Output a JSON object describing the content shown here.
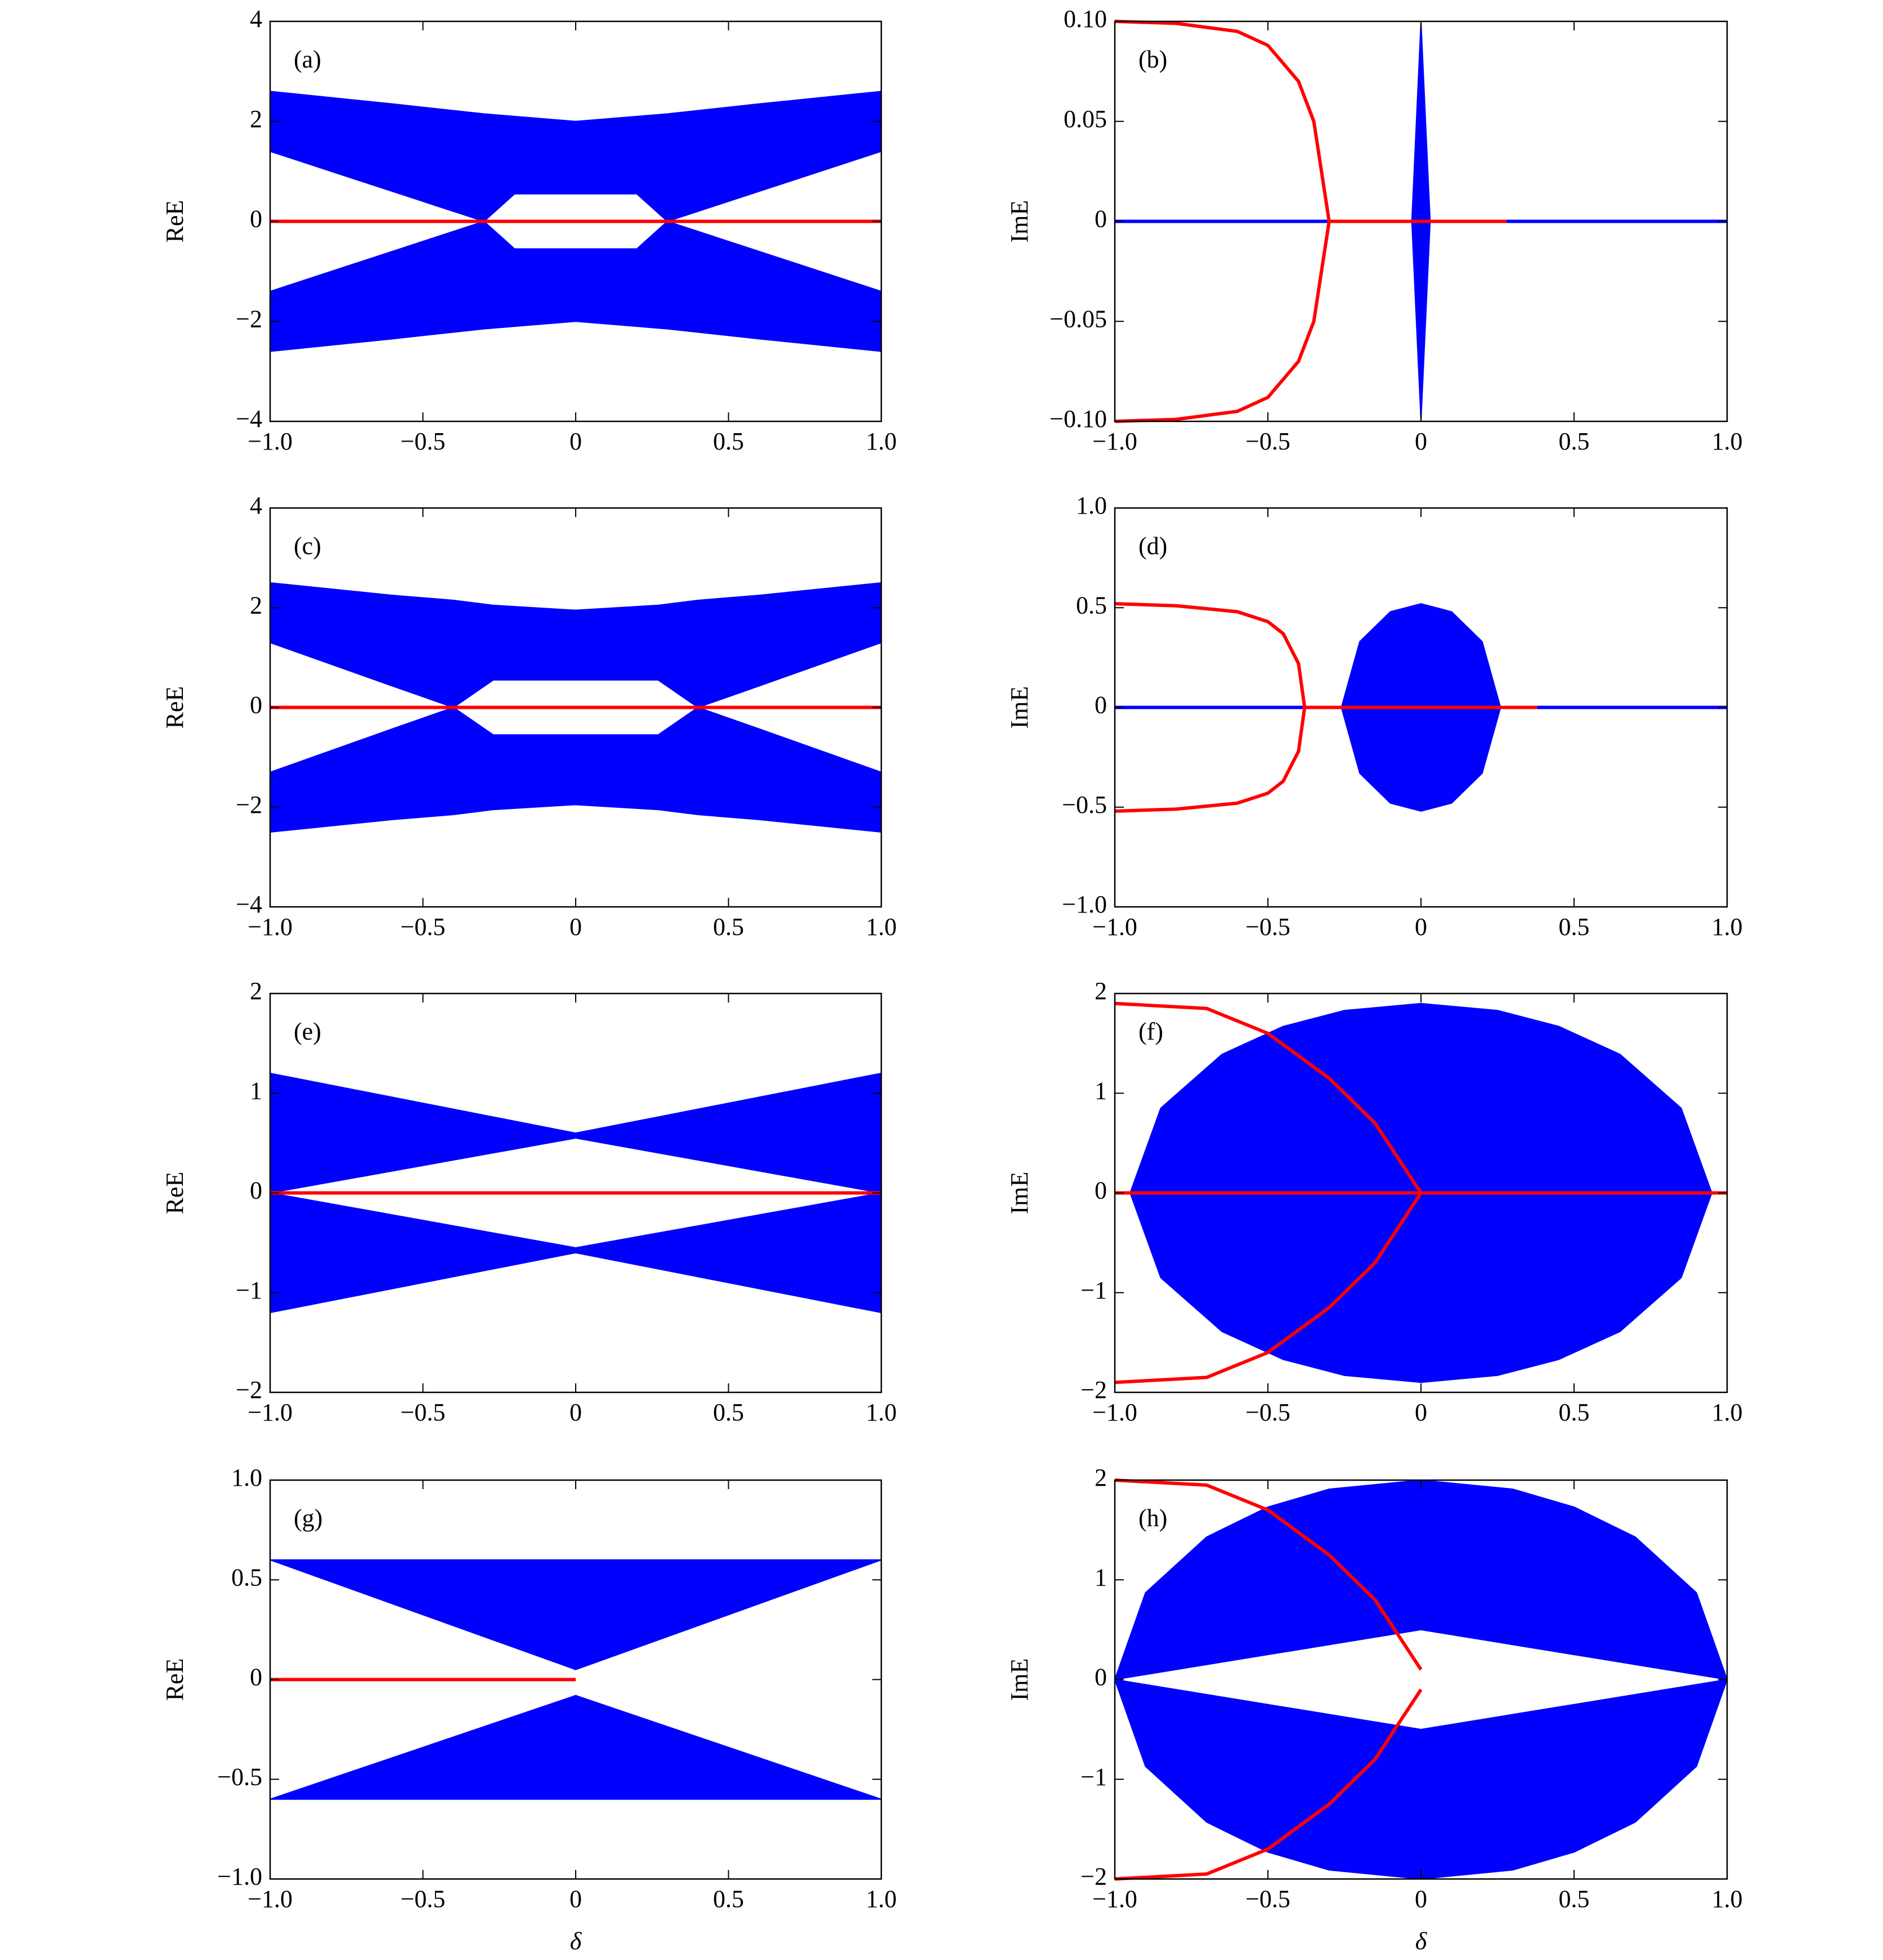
{
  "chart_data": [
    {
      "type": "line",
      "label": "(a)",
      "ylabel": "ReE",
      "xlim": [
        -1,
        1
      ],
      "ylim": [
        -4,
        4
      ],
      "xticks": [
        {
          "value": -1,
          "label": "−1.0"
        },
        {
          "value": -0.5,
          "label": "−0.5"
        },
        0,
        0.5,
        {
          "value": 1,
          "label": "1.0"
        }
      ],
      "yticks": [
        {
          "value": -4,
          "label": "−4"
        },
        {
          "value": -2,
          "label": "−2"
        },
        0,
        2,
        4
      ],
      "series": [
        {
          "color": "#0000ff",
          "x": [
            -1,
            -0.6,
            -0.3,
            -0.2,
            0,
            0.2,
            0.3,
            0.6,
            1
          ],
          "values": [
            2.6,
            2.35,
            2.15,
            2.1,
            2.0,
            2.1,
            2.15,
            2.35,
            2.6
          ],
          "values_low": [
            1.4,
            0.6,
            0,
            0.55,
            0.55,
            0.55,
            0,
            0.6,
            1.4
          ]
        },
        {
          "color": "#0000ff",
          "x": [
            -1,
            -0.6,
            -0.3,
            -0.2,
            0,
            0.2,
            0.3,
            0.6,
            1
          ],
          "values": [
            -1.4,
            -0.6,
            0,
            -0.55,
            -0.55,
            -0.55,
            0,
            -0.6,
            -1.4
          ],
          "values_low": [
            -2.6,
            -2.35,
            -2.15,
            -2.1,
            -2.0,
            -2.1,
            -2.15,
            -2.35,
            -2.6
          ]
        },
        {
          "color": "#ff0000",
          "x": [
            -1,
            1
          ],
          "values": [
            0,
            0
          ]
        }
      ]
    },
    {
      "type": "line",
      "label": "(b)",
      "ylabel": "ImE",
      "xlim": [
        -1,
        1
      ],
      "ylim": [
        -0.1,
        0.1
      ],
      "xticks": [
        {
          "value": -1,
          "label": "−1.0"
        },
        {
          "value": -0.5,
          "label": "−0.5"
        },
        0,
        0.5,
        {
          "value": 1,
          "label": "1.0"
        }
      ],
      "yticks": [
        {
          "value": -0.1,
          "label": "−0.10"
        },
        {
          "value": -0.05,
          "label": "−0.05"
        },
        0,
        0.05,
        {
          "value": 0.1,
          "label": "0.10"
        }
      ],
      "series": [
        {
          "color": "#0000ff",
          "x": [
            -1,
            1
          ],
          "values": [
            0,
            0
          ]
        },
        {
          "color": "#0000ff",
          "x": [
            -0.03,
            0,
            0.03
          ],
          "values": [
            0,
            0.1,
            0
          ],
          "values_low": [
            0,
            -0.1,
            0
          ]
        },
        {
          "color": "#ff0000",
          "x": [
            -1,
            -0.8,
            -0.6,
            -0.5,
            -0.4,
            -0.35,
            -0.3
          ],
          "values": [
            0.1,
            0.099,
            0.095,
            0.088,
            0.07,
            0.05,
            0
          ]
        },
        {
          "color": "#ff0000",
          "x": [
            -1,
            -0.8,
            -0.6,
            -0.5,
            -0.4,
            -0.35,
            -0.3
          ],
          "values": [
            -0.1,
            -0.099,
            -0.095,
            -0.088,
            -0.07,
            -0.05,
            0
          ]
        },
        {
          "color": "#ff0000",
          "x": [
            -0.3,
            0.28
          ],
          "values": [
            0,
            0
          ]
        }
      ]
    },
    {
      "type": "line",
      "label": "(c)",
      "ylabel": "ReE",
      "xlim": [
        -1,
        1
      ],
      "ylim": [
        -4,
        4
      ],
      "xticks": [
        {
          "value": -1,
          "label": "−1.0"
        },
        {
          "value": -0.5,
          "label": "−0.5"
        },
        0,
        0.5,
        {
          "value": 1,
          "label": "1.0"
        }
      ],
      "yticks": [
        {
          "value": -4,
          "label": "−4"
        },
        {
          "value": -2,
          "label": "−2"
        },
        0,
        2,
        4
      ],
      "series": [
        {
          "color": "#0000ff",
          "x": [
            -1,
            -0.6,
            -0.4,
            -0.27,
            0,
            0.27,
            0.4,
            0.6,
            1
          ],
          "values": [
            2.5,
            2.25,
            2.15,
            2.05,
            1.95,
            2.05,
            2.15,
            2.25,
            2.5
          ],
          "values_low": [
            1.3,
            0.43,
            0,
            0.55,
            0.55,
            0.55,
            0,
            0.43,
            1.3
          ]
        },
        {
          "color": "#0000ff",
          "x": [
            -1,
            -0.6,
            -0.4,
            -0.27,
            0,
            0.27,
            0.4,
            0.6,
            1
          ],
          "values": [
            -1.3,
            -0.43,
            0,
            -0.55,
            -0.55,
            -0.55,
            0,
            -0.43,
            -1.3
          ],
          "values_low": [
            -2.5,
            -2.25,
            -2.15,
            -2.05,
            -1.95,
            -2.05,
            -2.15,
            -2.25,
            -2.5
          ]
        },
        {
          "color": "#ff0000",
          "x": [
            -1,
            1
          ],
          "values": [
            0,
            0
          ]
        }
      ]
    },
    {
      "type": "line",
      "label": "(d)",
      "ylabel": "ImE",
      "xlim": [
        -1,
        1
      ],
      "ylim": [
        -1,
        1
      ],
      "xticks": [
        {
          "value": -1,
          "label": "−1.0"
        },
        {
          "value": -0.5,
          "label": "−0.5"
        },
        0,
        0.5,
        {
          "value": 1,
          "label": "1.0"
        }
      ],
      "yticks": [
        {
          "value": -1,
          "label": "−1.0"
        },
        {
          "value": -0.5,
          "label": "−0.5"
        },
        0,
        0.5,
        {
          "value": 1,
          "label": "1.0"
        }
      ],
      "series": [
        {
          "color": "#0000ff",
          "x": [
            -0.26,
            -0.2,
            -0.1,
            0,
            0.1,
            0.2,
            0.26
          ],
          "values": [
            0,
            0.33,
            0.48,
            0.52,
            0.48,
            0.33,
            0
          ],
          "values_low": [
            0,
            -0.33,
            -0.48,
            -0.52,
            -0.48,
            -0.33,
            0
          ]
        },
        {
          "color": "#0000ff",
          "x": [
            -1,
            1
          ],
          "values": [
            0,
            0
          ]
        },
        {
          "color": "#ff0000",
          "x": [
            -1,
            -0.8,
            -0.6,
            -0.5,
            -0.45,
            -0.4,
            -0.38
          ],
          "values": [
            0.52,
            0.51,
            0.48,
            0.43,
            0.37,
            0.22,
            0
          ]
        },
        {
          "color": "#ff0000",
          "x": [
            -1,
            -0.8,
            -0.6,
            -0.5,
            -0.45,
            -0.4,
            -0.38
          ],
          "values": [
            -0.52,
            -0.51,
            -0.48,
            -0.43,
            -0.37,
            -0.22,
            0
          ]
        },
        {
          "color": "#ff0000",
          "x": [
            -0.38,
            0.38
          ],
          "values": [
            0,
            0
          ]
        }
      ]
    },
    {
      "type": "line",
      "label": "(e)",
      "ylabel": "ReE",
      "xlim": [
        -1,
        1
      ],
      "ylim": [
        -2,
        2
      ],
      "xticks": [
        {
          "value": -1,
          "label": "−1.0"
        },
        {
          "value": -0.5,
          "label": "−0.5"
        },
        0,
        0.5,
        {
          "value": 1,
          "label": "1.0"
        }
      ],
      "yticks": [
        {
          "value": -2,
          "label": "−2"
        },
        {
          "value": -1,
          "label": "−1"
        },
        0,
        1,
        2
      ],
      "series": [
        {
          "color": "#0000ff",
          "x": [
            -1,
            0,
            1
          ],
          "values": [
            1.2,
            0.6,
            1.2
          ],
          "values_low": [
            0,
            0.55,
            0
          ]
        },
        {
          "color": "#0000ff",
          "x": [
            -1,
            0,
            1
          ],
          "values": [
            0,
            -0.55,
            0
          ],
          "values_low": [
            -1.2,
            -0.6,
            -1.2
          ]
        },
        {
          "color": "#ff0000",
          "x": [
            -1,
            1
          ],
          "values": [
            0,
            0
          ]
        }
      ]
    },
    {
      "type": "line",
      "label": "(f)",
      "ylabel": "ImE",
      "xlim": [
        -1,
        1
      ],
      "ylim": [
        -2,
        2
      ],
      "xticks": [
        {
          "value": -1,
          "label": "−1.0"
        },
        {
          "value": -0.5,
          "label": "−0.5"
        },
        0,
        0.5,
        {
          "value": 1,
          "label": "1.0"
        }
      ],
      "yticks": [
        {
          "value": -2,
          "label": "−2"
        },
        {
          "value": -1,
          "label": "−1"
        },
        0,
        1,
        2
      ],
      "series": [
        {
          "color": "#0000ff",
          "x": [
            -0.95,
            -0.85,
            -0.65,
            -0.45,
            -0.25,
            0,
            0.25,
            0.45,
            0.65,
            0.85,
            0.95
          ],
          "values": [
            0,
            0.85,
            1.39,
            1.67,
            1.83,
            1.9,
            1.83,
            1.67,
            1.39,
            0.85,
            0
          ],
          "values_low": [
            0,
            -0.85,
            -1.39,
            -1.67,
            -1.83,
            -1.9,
            -1.83,
            -1.67,
            -1.39,
            -0.85,
            0
          ]
        },
        {
          "color": "#ff0000",
          "x": [
            -1,
            -0.7,
            -0.5,
            -0.3,
            -0.15,
            0
          ],
          "values": [
            1.9,
            1.85,
            1.6,
            1.15,
            0.7,
            0
          ]
        },
        {
          "color": "#ff0000",
          "x": [
            -1,
            -0.7,
            -0.5,
            -0.3,
            -0.15,
            0
          ],
          "values": [
            -1.9,
            -1.85,
            -1.6,
            -1.15,
            -0.7,
            0
          ]
        },
        {
          "color": "#ff0000",
          "x": [
            -1,
            1
          ],
          "values": [
            0,
            0
          ]
        }
      ]
    },
    {
      "type": "line",
      "label": "(g)",
      "ylabel": "ReE",
      "xlabel": "δ",
      "xlim": [
        -1,
        1
      ],
      "ylim": [
        -1,
        1
      ],
      "xticks": [
        {
          "value": -1,
          "label": "−1.0"
        },
        {
          "value": -0.5,
          "label": "−0.5"
        },
        0,
        0.5,
        {
          "value": 1,
          "label": "1.0"
        }
      ],
      "yticks": [
        {
          "value": -1,
          "label": "−1.0"
        },
        {
          "value": -0.5,
          "label": "−0.5"
        },
        0,
        0.5,
        {
          "value": 1,
          "label": "1.0"
        }
      ],
      "series": [
        {
          "color": "#0000ff",
          "x": [
            -1,
            0,
            1
          ],
          "values": [
            0.6,
            0.6,
            0.6
          ],
          "values_low": [
            0.6,
            0.05,
            0.6
          ]
        },
        {
          "color": "#0000ff",
          "x": [
            -1,
            0,
            1
          ],
          "values": [
            -0.6,
            -0.08,
            -0.6
          ],
          "values_low": [
            -0.6,
            -0.6,
            -0.6
          ]
        },
        {
          "color": "#ff0000",
          "x": [
            -1,
            0
          ],
          "values": [
            0,
            0
          ]
        }
      ]
    },
    {
      "type": "line",
      "label": "(h)",
      "ylabel": "ImE",
      "xlabel": "δ",
      "xlim": [
        -1,
        1
      ],
      "ylim": [
        -2,
        2
      ],
      "xticks": [
        {
          "value": -1,
          "label": "−1.0"
        },
        {
          "value": -0.5,
          "label": "−0.5"
        },
        0,
        0.5,
        {
          "value": 1,
          "label": "1.0"
        }
      ],
      "yticks": [
        {
          "value": -2,
          "label": "−2"
        },
        {
          "value": -1,
          "label": "−1"
        },
        0,
        1,
        2
      ],
      "series": [
        {
          "color": "#0000ff",
          "x": [
            -1,
            -0.9,
            -0.7,
            -0.5,
            -0.3,
            0,
            0.3,
            0.5,
            0.7,
            0.9,
            1
          ],
          "values": [
            0,
            0.87,
            1.43,
            1.73,
            1.91,
            2,
            1.91,
            1.73,
            1.43,
            0.87,
            0
          ],
          "values_low": [
            0,
            0.05,
            0.15,
            0.25,
            0.35,
            0.5,
            0.35,
            0.25,
            0.15,
            0.05,
            0
          ]
        },
        {
          "color": "#0000ff",
          "x": [
            -1,
            -0.9,
            -0.7,
            -0.5,
            -0.3,
            0,
            0.3,
            0.5,
            0.7,
            0.9,
            1
          ],
          "values": [
            0,
            -0.05,
            -0.15,
            -0.25,
            -0.35,
            -0.5,
            -0.35,
            -0.25,
            -0.15,
            -0.05,
            0
          ],
          "values_low": [
            0,
            -0.87,
            -1.43,
            -1.73,
            -1.91,
            -2,
            -1.91,
            -1.73,
            -1.43,
            -0.87,
            0
          ]
        },
        {
          "color": "#ff0000",
          "x": [
            -1,
            -0.7,
            -0.5,
            -0.3,
            -0.15,
            0
          ],
          "values": [
            2,
            1.95,
            1.7,
            1.25,
            0.8,
            0.1
          ]
        },
        {
          "color": "#ff0000",
          "x": [
            -1,
            -0.7,
            -0.5,
            -0.3,
            -0.15,
            0
          ],
          "values": [
            -2,
            -1.95,
            -1.7,
            -1.25,
            -0.8,
            -0.1
          ]
        }
      ]
    }
  ]
}
